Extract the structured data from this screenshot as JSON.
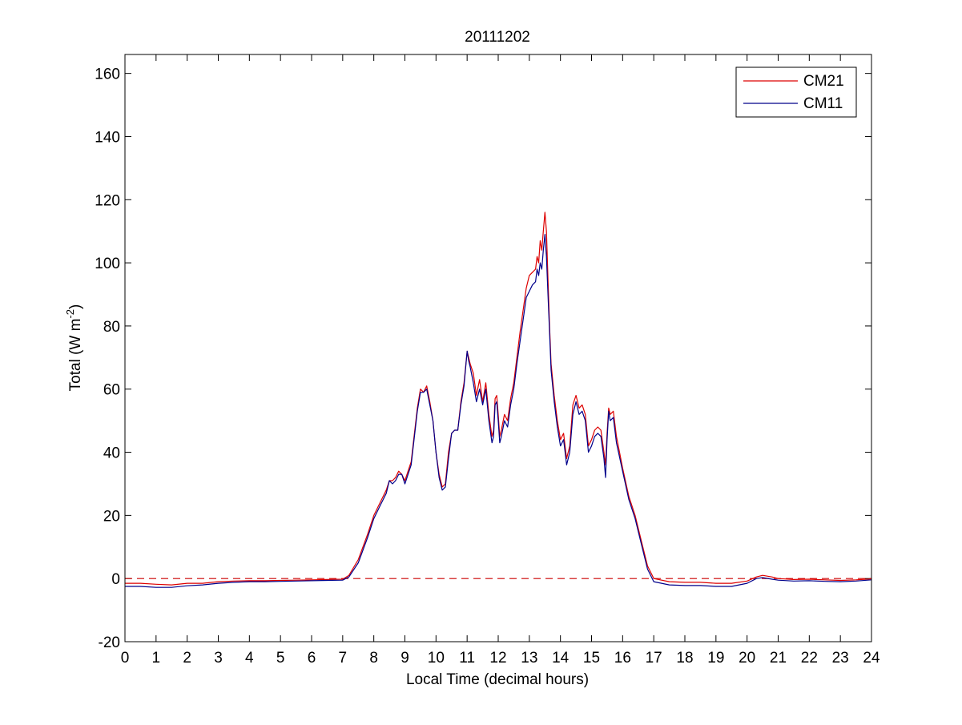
{
  "chart_data": {
    "type": "line",
    "title": "20111202",
    "xlabel": "Local Time (decimal hours)",
    "ylabel": {
      "base": "Total (W m",
      "sup": "-2",
      "tail": ")"
    },
    "xlim": [
      0,
      24
    ],
    "ylim": [
      -20,
      166
    ],
    "xticks": [
      0,
      1,
      2,
      3,
      4,
      5,
      6,
      7,
      8,
      9,
      10,
      11,
      12,
      13,
      14,
      15,
      16,
      17,
      18,
      19,
      20,
      21,
      22,
      23,
      24
    ],
    "yticks": [
      -20,
      0,
      20,
      40,
      60,
      80,
      100,
      120,
      140,
      160
    ],
    "grid": false,
    "legend_position": "top-right",
    "reference_line": {
      "y": 0,
      "color": "#cc0000",
      "style": "dashed"
    },
    "series": [
      {
        "name": "CM21",
        "color": "#dd0000",
        "x": [
          0,
          0.5,
          1,
          1.5,
          2,
          2.5,
          3,
          3.5,
          4,
          4.5,
          5,
          5.5,
          6,
          6.5,
          7,
          7.2,
          7.5,
          7.8,
          8,
          8.2,
          8.4,
          8.5,
          8.6,
          8.7,
          8.8,
          8.9,
          9,
          9.2,
          9.4,
          9.5,
          9.6,
          9.7,
          9.8,
          9.9,
          10,
          10.1,
          10.2,
          10.3,
          10.4,
          10.5,
          10.6,
          10.7,
          10.8,
          10.9,
          11,
          11.05,
          11.1,
          11.2,
          11.3,
          11.4,
          11.5,
          11.6,
          11.7,
          11.8,
          11.85,
          11.9,
          11.95,
          12,
          12.05,
          12.1,
          12.2,
          12.3,
          12.4,
          12.5,
          12.6,
          12.7,
          12.8,
          12.9,
          13,
          13.1,
          13.2,
          13.25,
          13.3,
          13.35,
          13.4,
          13.45,
          13.5,
          13.55,
          13.6,
          13.65,
          13.7,
          13.8,
          13.9,
          14,
          14.1,
          14.2,
          14.3,
          14.4,
          14.5,
          14.6,
          14.7,
          14.8,
          14.9,
          15,
          15.1,
          15.2,
          15.3,
          15.4,
          15.45,
          15.5,
          15.55,
          15.6,
          15.7,
          15.8,
          16,
          16.2,
          16.4,
          16.6,
          16.8,
          17,
          17.5,
          18,
          18.5,
          19,
          19.5,
          20,
          20.3,
          20.5,
          20.8,
          21,
          21.5,
          22,
          22.5,
          23,
          23.5,
          24
        ],
        "y": [
          -1.5,
          -1.5,
          -1.8,
          -2,
          -1.5,
          -1.5,
          -1,
          -0.8,
          -0.7,
          -0.7,
          -0.6,
          -0.5,
          -0.4,
          -0.3,
          -0.2,
          1,
          6,
          14,
          20,
          24,
          28,
          31,
          31,
          32,
          34,
          33,
          31,
          37,
          54,
          60,
          59,
          61,
          56,
          50,
          40,
          33,
          29,
          30,
          40,
          46,
          47,
          47,
          56,
          62,
          72,
          70,
          68,
          65,
          58,
          63,
          56,
          62,
          52,
          45,
          47,
          57,
          58,
          52,
          45,
          47,
          52,
          50,
          57,
          62,
          70,
          78,
          85,
          92,
          96,
          97,
          98,
          102,
          100,
          107,
          104,
          110,
          116,
          110,
          95,
          80,
          68,
          58,
          50,
          44,
          46,
          38,
          42,
          55,
          58,
          54,
          55,
          52,
          42,
          44,
          47,
          48,
          47,
          40,
          36,
          46,
          54,
          52,
          53,
          45,
          35,
          26,
          20,
          12,
          4,
          0,
          -1,
          -1.2,
          -1.2,
          -1.5,
          -1.5,
          -0.8,
          0.5,
          1,
          0.5,
          0,
          -0.3,
          -0.2,
          -0.4,
          -0.6,
          -0.4,
          -0.1
        ]
      },
      {
        "name": "CM11",
        "color": "#00008b",
        "x": [
          0,
          0.5,
          1,
          1.5,
          2,
          2.5,
          3,
          3.5,
          4,
          4.5,
          5,
          5.5,
          6,
          6.5,
          7,
          7.2,
          7.5,
          7.8,
          8,
          8.2,
          8.4,
          8.5,
          8.6,
          8.7,
          8.8,
          8.9,
          9,
          9.2,
          9.4,
          9.5,
          9.6,
          9.7,
          9.8,
          9.9,
          10,
          10.1,
          10.2,
          10.3,
          10.4,
          10.5,
          10.6,
          10.7,
          10.8,
          10.9,
          11,
          11.05,
          11.1,
          11.2,
          11.3,
          11.4,
          11.5,
          11.6,
          11.7,
          11.8,
          11.85,
          11.9,
          11.95,
          12,
          12.05,
          12.1,
          12.2,
          12.3,
          12.4,
          12.5,
          12.6,
          12.7,
          12.8,
          12.9,
          13,
          13.1,
          13.2,
          13.25,
          13.3,
          13.35,
          13.4,
          13.45,
          13.5,
          13.55,
          13.6,
          13.65,
          13.7,
          13.8,
          13.9,
          14,
          14.1,
          14.2,
          14.3,
          14.4,
          14.5,
          14.6,
          14.7,
          14.8,
          14.9,
          15,
          15.1,
          15.2,
          15.3,
          15.4,
          15.45,
          15.5,
          15.55,
          15.6,
          15.7,
          15.8,
          16,
          16.2,
          16.4,
          16.6,
          16.8,
          17,
          17.5,
          18,
          18.5,
          19,
          19.5,
          20,
          20.3,
          20.5,
          20.8,
          21,
          21.5,
          22,
          22.5,
          23,
          23.5,
          24
        ],
        "y": [
          -2.5,
          -2.5,
          -2.8,
          -2.8,
          -2.3,
          -2,
          -1.5,
          -1.2,
          -1,
          -1,
          -0.9,
          -0.8,
          -0.7,
          -0.6,
          -0.5,
          0.5,
          5,
          13,
          19,
          23,
          27,
          31,
          30,
          31,
          33,
          33,
          30,
          36,
          53,
          59,
          59,
          60,
          55,
          50,
          40,
          32,
          28,
          29,
          38,
          46,
          47,
          47,
          55,
          61,
          72,
          69,
          67,
          62,
          56,
          60,
          55,
          60,
          50,
          43,
          45,
          55,
          56,
          50,
          43,
          45,
          50,
          48,
          55,
          60,
          68,
          75,
          82,
          89,
          91,
          93,
          94,
          98,
          96,
          100,
          98,
          104,
          109,
          102,
          90,
          78,
          66,
          56,
          48,
          42,
          44,
          36,
          40,
          52,
          56,
          52,
          53,
          50,
          40,
          42,
          45,
          46,
          45,
          38,
          32,
          44,
          53,
          50,
          51,
          43,
          34,
          25,
          19,
          11,
          3,
          -1,
          -2,
          -2.2,
          -2.2,
          -2.5,
          -2.5,
          -1.5,
          0,
          0.3,
          -0.2,
          -0.5,
          -0.8,
          -0.7,
          -0.9,
          -1,
          -0.8,
          -0.4
        ]
      }
    ]
  }
}
